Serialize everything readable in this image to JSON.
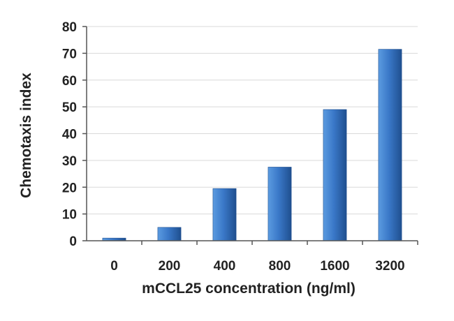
{
  "chart_data": {
    "type": "bar",
    "title": "",
    "xlabel": "mCCL25  concentration (ng/ml)",
    "ylabel": "Chemotaxis index",
    "categories": [
      "0",
      "200",
      "400",
      "800",
      "1600",
      "3200"
    ],
    "values": [
      1,
      5,
      19.5,
      27.5,
      49,
      71.5
    ],
    "ylim": [
      0,
      80
    ],
    "yticks": [
      0,
      10,
      20,
      30,
      40,
      50,
      60,
      70,
      80
    ],
    "grid": true,
    "legend": "none",
    "colors": {
      "bar_light": "#5b9be0",
      "bar_mid": "#3a78c8",
      "bar_dark": "#1f4f8f"
    }
  }
}
